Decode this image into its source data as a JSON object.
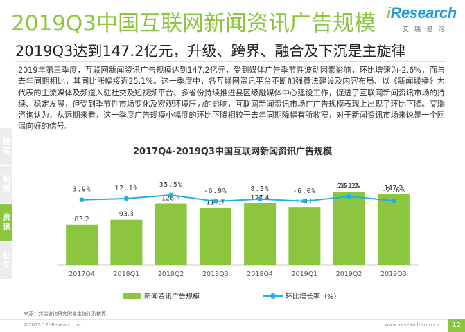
{
  "header": {
    "title": "2019Q3中国互联网新闻资讯广告规模",
    "subtitle": "2019Q3达到147.2亿元，升级、跨界、融合及下沉是主旋律"
  },
  "logo": {
    "word_i": "i",
    "word_rest": "Research",
    "sub": "艾瑞咨询"
  },
  "body": {
    "paragraph": "2019年第三季度，互联网新闻资讯广告规模达到147.2亿元，受到媒体广告季节性波动因素影响，环比增速为-2.6%，而与去年同期相比，其同比涨幅接近25.1%。这一季度中，各互联网资讯平台不断加强算法建设及内容布局、以《新闻联播》为代表的主流媒体及频道入驻社交及短视频平台、多省份持续推进县区级融媒体中心建设工作，促进了互联网新闻资讯市场的持续、稳定发展，但受到季节性市场变化及宏观环境压力的影响，互联网新闻资讯市场在广告规模表现上出现了环比下降。艾瑞咨询认为，从远期来看，这一季度广告规模小幅度的环比下降相较于去年同期降幅有所收窄，对于新闻资讯市场来说是一个回温向好的信号。"
  },
  "sidebar": {
    "items": [
      {
        "label": "搜索",
        "active": false
      },
      {
        "label": "视频",
        "active": false
      },
      {
        "label": "资讯",
        "active": true
      },
      {
        "label": "社交",
        "active": false
      }
    ]
  },
  "chart_data": {
    "type": "bar",
    "title": "2017Q4-2019Q3中国互联网新闻资讯广告规模",
    "categories": [
      "2017Q4",
      "2018Q1",
      "2018Q2",
      "2018Q3",
      "2018Q4",
      "2019Q1",
      "2019Q2",
      "2019Q3"
    ],
    "series": [
      {
        "name": "新闻资讯广告规模",
        "type": "bar",
        "color": "#8cc63f",
        "values": [
          83.2,
          93.3,
          126.4,
          117.7,
          127.4,
          119.8,
          151.2,
          147.2
        ]
      },
      {
        "name": "环比增长率（%）",
        "type": "line",
        "color": "#1fb0e6",
        "values": [
          3.9,
          12.1,
          35.5,
          -6.9,
          8.3,
          -6.0,
          26.2,
          -2.6
        ],
        "labels": [
          "3.9%",
          "12.1%",
          "35.5%",
          "-6.9%",
          "8.3%",
          "-6.0%",
          "26.2%",
          "-2.6%"
        ]
      }
    ],
    "bar_value_labels": [
      "83.2",
      "93.3",
      "126.4",
      "117.7",
      "127.4",
      "119.8",
      "151.2",
      "147.2"
    ],
    "legend_position": "bottom",
    "grid": false
  },
  "footer": {
    "source": "来源：艾瑞咨询研究院自主统计及核算。",
    "copyright": "©2019.12 iResearch Inc.",
    "site": "www.iresearch.com.cn",
    "page": "12"
  }
}
